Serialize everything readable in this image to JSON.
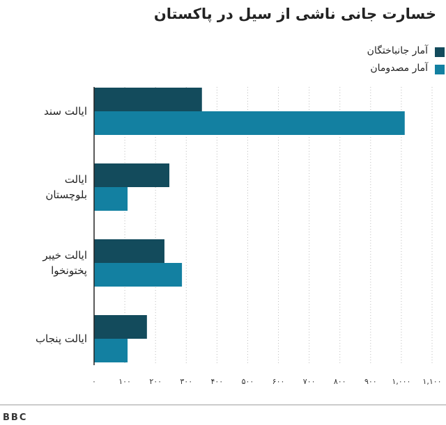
{
  "chart_data": {
    "type": "hbar",
    "title": "خسارت جانی ناشی از سیل در پاکستان",
    "categories": [
      "ایالت سند",
      "ایالت بلوچستان",
      "ایالت خیبر پختونخوا",
      "ایالت پنجاب"
    ],
    "series": [
      {
        "name": "آمار جانباختگان",
        "color": "#134b5c",
        "values": [
          351,
          245,
          229,
          172
        ]
      },
      {
        "name": "آمار مصدومان",
        "color": "#1380a1",
        "values": [
          1011,
          109,
          286,
          109
        ]
      }
    ],
    "xlim": [
      0,
      1100
    ],
    "xticks": [
      {
        "value": 0,
        "label": "۰"
      },
      {
        "value": 100,
        "label": "۱۰۰"
      },
      {
        "value": 200,
        "label": "۲۰۰"
      },
      {
        "value": 300,
        "label": "۳۰۰"
      },
      {
        "value": 400,
        "label": "۴۰۰"
      },
      {
        "value": 500,
        "label": "۵۰۰"
      },
      {
        "value": 600,
        "label": "۶۰۰"
      },
      {
        "value": 700,
        "label": "۷۰۰"
      },
      {
        "value": 800,
        "label": "۸۰۰"
      },
      {
        "value": 900,
        "label": "۹۰۰"
      },
      {
        "value": 1000,
        "label": "۱,۰۰۰"
      },
      {
        "value": 1100,
        "label": "۱,۱۰۰"
      }
    ],
    "grid": true,
    "legend": "top-right",
    "source": "BBC"
  }
}
